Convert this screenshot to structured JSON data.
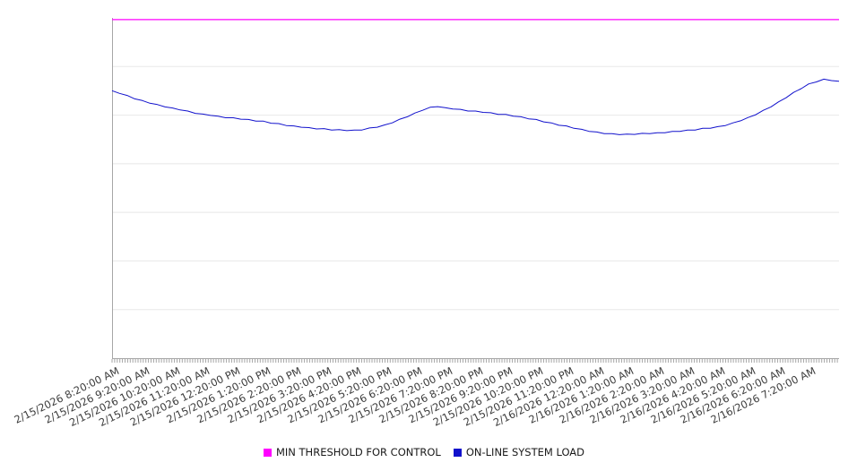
{
  "chart_data": {
    "type": "line",
    "title": "",
    "xlabel": "",
    "ylabel": "",
    "grid": true,
    "grid_divisions": 7,
    "legend_position": "bottom-center",
    "ylim": [
      0,
      100.5
    ],
    "x_range_hours": [
      0,
      24
    ],
    "categories": [
      "2/15/2026 8:20:00 AM",
      "2/15/2026 9:20:00 AM",
      "2/15/2026 10:20:00 AM",
      "2/15/2026 11:20:00 AM",
      "2/15/2026 12:20:00 PM",
      "2/15/2026 1:20:00 PM",
      "2/15/2026 2:20:00 PM",
      "2/15/2026 3:20:00 PM",
      "2/15/2026 4:20:00 PM",
      "2/15/2026 5:20:00 PM",
      "2/15/2026 6:20:00 PM",
      "2/15/2026 7:20:00 PM",
      "2/15/2026 8:20:00 PM",
      "2/15/2026 9:20:00 PM",
      "2/15/2026 10:20:00 PM",
      "2/15/2026 11:20:00 PM",
      "2/16/2026 12:20:00 AM",
      "2/16/2026 1:20:00 AM",
      "2/16/2026 2:20:00 AM",
      "2/16/2026 3:20:00 AM",
      "2/16/2026 4:20:00 AM",
      "2/16/2026 5:20:00 AM",
      "2/16/2026 6:20:00 AM",
      "2/16/2026 7:20:00 AM"
    ],
    "series": [
      {
        "name": "MIN THRESHOLD FOR CONTROL",
        "type": "threshold",
        "color": "#ff00ff",
        "value": 100
      },
      {
        "name": "ON-LINE SYSTEM LOAD",
        "type": "line",
        "color": "#1111cc",
        "x_step_hours": 0.25,
        "values": [
          79.0,
          78.2,
          77.6,
          76.6,
          76.1,
          75.3,
          74.9,
          74.2,
          73.9,
          73.3,
          73.0,
          72.3,
          72.1,
          71.7,
          71.5,
          71.0,
          71.0,
          70.6,
          70.5,
          70.0,
          70.0,
          69.4,
          69.3,
          68.7,
          68.6,
          68.2,
          68.1,
          67.7,
          67.8,
          67.4,
          67.5,
          67.2,
          67.4,
          67.4,
          68.0,
          68.2,
          68.9,
          69.5,
          70.6,
          71.3,
          72.4,
          73.2,
          74.1,
          74.3,
          74.0,
          73.6,
          73.5,
          73.0,
          73.0,
          72.6,
          72.5,
          72.0,
          72.0,
          71.5,
          71.3,
          70.7,
          70.5,
          69.8,
          69.5,
          68.8,
          68.6,
          67.9,
          67.6,
          67.0,
          66.8,
          66.3,
          66.3,
          66.0,
          66.2,
          66.1,
          66.4,
          66.3,
          66.6,
          66.6,
          67.0,
          67.0,
          67.4,
          67.4,
          67.9,
          67.9,
          68.4,
          68.7,
          69.5,
          70.1,
          71.1,
          71.9,
          73.2,
          74.2,
          75.7,
          76.9,
          78.5,
          79.6,
          81.0,
          81.6,
          82.4,
          82.0,
          81.8
        ]
      }
    ],
    "colors": {
      "threshold": "#ff00ff",
      "load_line": "#1111cc",
      "grid_line": "#e8e8e8",
      "axis_line": "#a6a6a6",
      "tick_label": "#3c3c3c"
    }
  }
}
